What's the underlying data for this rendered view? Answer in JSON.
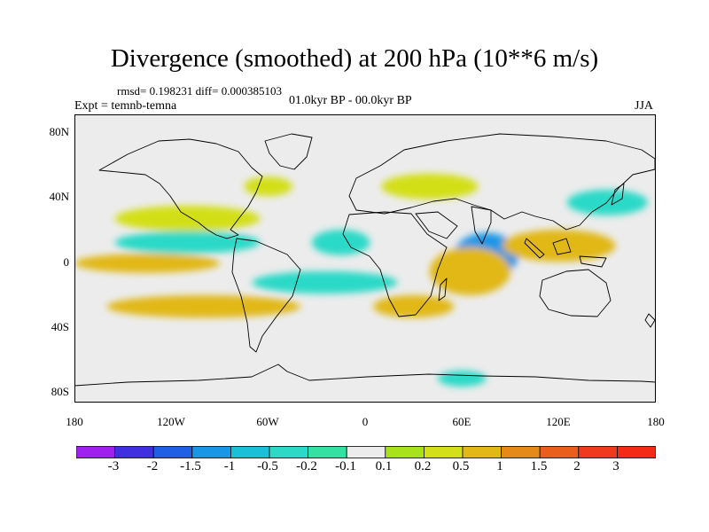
{
  "header": {
    "title": "Divergence (smoothed) at 200 hPa (10**6 m/s)",
    "stats": "rmsd= 0.198231 diff= 0.000385103",
    "experiment": "Expt = temnb-temna",
    "period": "01.0kyr BP - 00.0kyr BP",
    "season": "JJA"
  },
  "axes": {
    "y_ticks": [
      {
        "value": 80,
        "label": "80N"
      },
      {
        "value": 40,
        "label": "40N"
      },
      {
        "value": 0,
        "label": "0"
      },
      {
        "value": -40,
        "label": "40S"
      },
      {
        "value": -80,
        "label": "80S"
      }
    ],
    "x_ticks": [
      {
        "value": -180,
        "label": "180"
      },
      {
        "value": -120,
        "label": "120W"
      },
      {
        "value": -60,
        "label": "60W"
      },
      {
        "value": 0,
        "label": "0"
      },
      {
        "value": 60,
        "label": "60E"
      },
      {
        "value": 120,
        "label": "120E"
      },
      {
        "value": 180,
        "label": "180"
      }
    ],
    "lon_range": [
      -180,
      180
    ],
    "lat_range": [
      -90,
      90
    ]
  },
  "colorbar": {
    "labels": [
      "-3",
      "-2",
      "-1.5",
      "-1",
      "-0.5",
      "-0.2",
      "-0.1",
      "0.1",
      "0.2",
      "0.5",
      "1",
      "1.5",
      "2",
      "3"
    ],
    "colors": [
      "#a020f0",
      "#3f2fe0",
      "#1e5fe6",
      "#1a96e6",
      "#19c0d8",
      "#2cd9c7",
      "#34e0a2",
      "#ececec",
      "#a8e21b",
      "#d3df19",
      "#e1b815",
      "#e58a18",
      "#ea5e1c",
      "#ef3a1d",
      "#f52a16"
    ]
  },
  "colors": {
    "background": "#ececec",
    "coast": "#000000"
  },
  "anomalies": [
    {
      "lon": 75,
      "lat": 2,
      "rx": 20,
      "ry": 14,
      "level": -1.5
    },
    {
      "lon": 65,
      "lat": -8,
      "rx": 25,
      "ry": 15,
      "level": 0.5
    },
    {
      "lon": 120,
      "lat": 8,
      "rx": 35,
      "ry": 10,
      "level": 0.5
    },
    {
      "lon": -15,
      "lat": 10,
      "rx": 18,
      "ry": 8,
      "level": -0.5
    },
    {
      "lon": -110,
      "lat": 25,
      "rx": 45,
      "ry": 8,
      "level": 0.2
    },
    {
      "lon": -110,
      "lat": 10,
      "rx": 45,
      "ry": 7,
      "level": -0.5
    },
    {
      "lon": -135,
      "lat": -3,
      "rx": 45,
      "ry": 6,
      "level": 0.5
    },
    {
      "lon": -100,
      "lat": -30,
      "rx": 60,
      "ry": 7,
      "level": 0.5
    },
    {
      "lon": -25,
      "lat": -15,
      "rx": 45,
      "ry": 7,
      "level": -0.5
    },
    {
      "lon": 30,
      "lat": -30,
      "rx": 25,
      "ry": 7,
      "level": 0.5
    },
    {
      "lon": 40,
      "lat": 45,
      "rx": 30,
      "ry": 8,
      "level": 0.2
    },
    {
      "lon": 150,
      "lat": 35,
      "rx": 25,
      "ry": 8,
      "level": -0.5
    },
    {
      "lon": 60,
      "lat": -75,
      "rx": 15,
      "ry": 5,
      "level": -0.5
    },
    {
      "lon": -60,
      "lat": 45,
      "rx": 15,
      "ry": 6,
      "level": 0.2
    }
  ]
}
